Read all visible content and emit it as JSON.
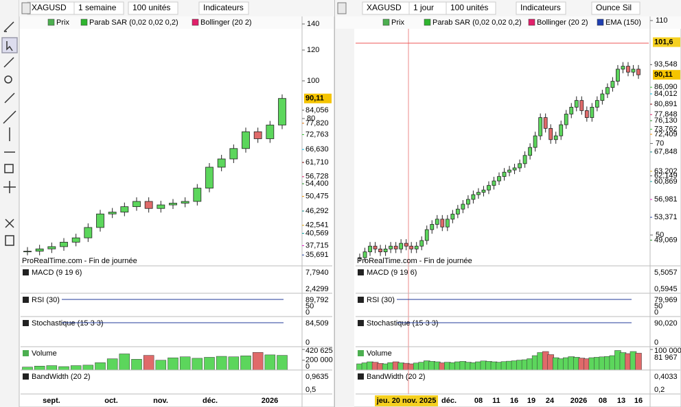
{
  "left": {
    "header": {
      "symbol": "XAGUSD",
      "period": "1 semaine",
      "units": "100 unités",
      "indicators": "Indicateurs"
    },
    "legend": [
      "Prix",
      "Parab SAR (0,02 0,02 0,2)",
      "Bollinger (20 2)"
    ],
    "price_ticks": [
      140,
      120,
      100,
      80
    ],
    "price_labels": [
      {
        "value": 90.11,
        "label": "90,11",
        "color": "#000000",
        "bg": "#f5c400"
      },
      {
        "value": 84.056,
        "label": "84,056",
        "color": "#555555"
      },
      {
        "value": 77.82,
        "label": "77,820",
        "color": "#e07000"
      },
      {
        "value": 72.763,
        "label": "72,763",
        "color": "#33bb33"
      },
      {
        "value": 66.63,
        "label": "66,630",
        "color": "#00b8e0"
      },
      {
        "value": 61.71,
        "label": "61,710",
        "color": "#7a0000"
      },
      {
        "value": 56.728,
        "label": "56,728",
        "color": "#e0206a"
      },
      {
        "value": 54.4,
        "label": "54,400",
        "color": "#1f8a1f"
      },
      {
        "value": 50.475,
        "label": "50,475",
        "color": "#f09000"
      },
      {
        "value": 46.292,
        "label": "46,292",
        "color": "#008080"
      },
      {
        "value": 42.541,
        "label": "42,541",
        "color": "#e0a000"
      },
      {
        "value": 40.569,
        "label": "40,569",
        "color": "#00a0a0"
      },
      {
        "value": 37.715,
        "label": "37,715",
        "color": "#e020c0"
      },
      {
        "value": 35.691,
        "label": "35,691",
        "color": "#2040a0"
      }
    ],
    "closes": [
      36.5,
      37,
      37.5,
      38.5,
      39.5,
      42,
      45.5,
      46,
      47.5,
      49,
      47,
      48,
      48.5,
      49,
      53,
      60,
      63,
      67,
      74,
      71,
      77,
      90.11
    ],
    "volumes": [
      60000,
      80000,
      90000,
      70000,
      90000,
      100000,
      150000,
      230000,
      330000,
      220000,
      300000,
      200000,
      250000,
      270000,
      240000,
      260000,
      280000,
      270000,
      290000,
      360000,
      310000,
      300000
    ],
    "watermark": "ProRealTime.com - Fin de journée",
    "panels": [
      {
        "title": "MACD (9 19 6)",
        "labels": [
          "7,7940",
          "2,4299"
        ]
      },
      {
        "title": "RSI (30)",
        "labels": [
          "89,792",
          "50",
          "0"
        ]
      },
      {
        "title": "Stochastique (15 3 3)",
        "labels": [
          "84,509",
          "0"
        ]
      },
      {
        "title": "Volume",
        "volume_ticks": [
          {
            "value": 420625,
            "label": "420 625"
          },
          {
            "value": 200000,
            "label": "200 000"
          },
          0
        ]
      },
      {
        "title": "BandWidth (20 2)",
        "labels": [
          "0,9635",
          "0,5"
        ]
      }
    ],
    "x_labels": [
      "sept.",
      "oct.",
      "nov.",
      "déc.",
      "2026"
    ]
  },
  "right": {
    "header": {
      "symbol": "XAGUSD",
      "period": "1 jour",
      "units": "100 unités",
      "indicators": "Indicateurs",
      "instrument": "Ounce Sil"
    },
    "legend": [
      "Prix",
      "Parab SAR (0,02 0,02 0,2)",
      "Bollinger (20 2)",
      "EMA (150)"
    ],
    "price_ticks": [
      110,
      70,
      50
    ],
    "price_labels": [
      {
        "value": 101.6,
        "label": "101,6",
        "color": "#000000",
        "bg": "#f5d020"
      },
      {
        "value": 93.548,
        "label": "93,548",
        "color": "#555555"
      },
      {
        "value": 90.11,
        "label": "90,11",
        "color": "#000000",
        "bg": "#f5c400"
      },
      {
        "value": 86.09,
        "label": "86,090",
        "color": "#33bb33"
      },
      {
        "value": 84.012,
        "label": "84,012",
        "color": "#00b8e0"
      },
      {
        "value": 80.891,
        "label": "80,891",
        "color": "#7a0000"
      },
      {
        "value": 77.848,
        "label": "77,848",
        "color": "#e0206a"
      },
      {
        "value": 76.13,
        "label": "76,130",
        "color": "#1f8a1f"
      },
      {
        "value": 73.762,
        "label": "73,762",
        "color": "#33bb33"
      },
      {
        "value": 72.409,
        "label": "72,409",
        "color": "#f09000"
      },
      {
        "value": 67.848,
        "label": "67,848",
        "color": "#008080"
      },
      {
        "value": 63.202,
        "label": "63,202",
        "color": "#e0a000"
      },
      {
        "value": 62.149,
        "label": "62,149",
        "color": "#555555"
      },
      {
        "value": 60.869,
        "label": "60,869",
        "color": "#00a0a0"
      },
      {
        "value": 56.981,
        "label": "56,981",
        "color": "#e020c0"
      },
      {
        "value": 53.371,
        "label": "53,371",
        "color": "#2040a0"
      },
      {
        "value": 49.069,
        "label": "49,069",
        "color": "#1f8a1f"
      }
    ],
    "closes": [
      46,
      47,
      48,
      47.5,
      47,
      47.5,
      48,
      47.5,
      48.5,
      48,
      47.5,
      48,
      49,
      51,
      52,
      53,
      51.5,
      53,
      54,
      55,
      56,
      57,
      58,
      58.5,
      59,
      60,
      61,
      62,
      63,
      63.5,
      64,
      65,
      67,
      69,
      72,
      77,
      74,
      71,
      72,
      75,
      78,
      80,
      82,
      79,
      77,
      80,
      82,
      84,
      86,
      88,
      92,
      93,
      91,
      92,
      90.11
    ],
    "volumes": [
      30000,
      35000,
      40000,
      38000,
      32000,
      30000,
      36000,
      40000,
      35000,
      33000,
      30000,
      34000,
      38000,
      45000,
      42000,
      40000,
      35000,
      38000,
      36000,
      40000,
      42000,
      38000,
      36000,
      40000,
      44000,
      42000,
      40000,
      38000,
      41000,
      43000,
      45000,
      48000,
      50000,
      55000,
      70000,
      85000,
      90000,
      75000,
      60000,
      55000,
      60000,
      65000,
      62000,
      58000,
      55000,
      60000,
      62000,
      64000,
      66000,
      70000,
      95000,
      85000,
      80000,
      90000,
      81967
    ],
    "watermark": "ProRealTime.com - Fin de journée",
    "panels": [
      {
        "title": "MACD (9 19 6)",
        "labels": [
          "5,5057",
          "0,5945"
        ]
      },
      {
        "title": "RSI (30)",
        "labels": [
          "79,969",
          "50",
          "0"
        ]
      },
      {
        "title": "Stochastique (15 3 3)",
        "labels": [
          "90,020",
          "0"
        ]
      },
      {
        "title": "Volume",
        "volume_ticks": [
          {
            "value": 100000,
            "label": "100 000"
          }
        ],
        "labels": [
          "81 967"
        ]
      },
      {
        "title": "BandWidth (20 2)",
        "labels": [
          "0,4033",
          "0,2"
        ]
      }
    ],
    "x_labels": [
      "jeu. 20 nov. 2025",
      "déc.",
      "08",
      "11",
      "16",
      "19",
      "24",
      "2026",
      "08",
      "13",
      "16"
    ]
  }
}
